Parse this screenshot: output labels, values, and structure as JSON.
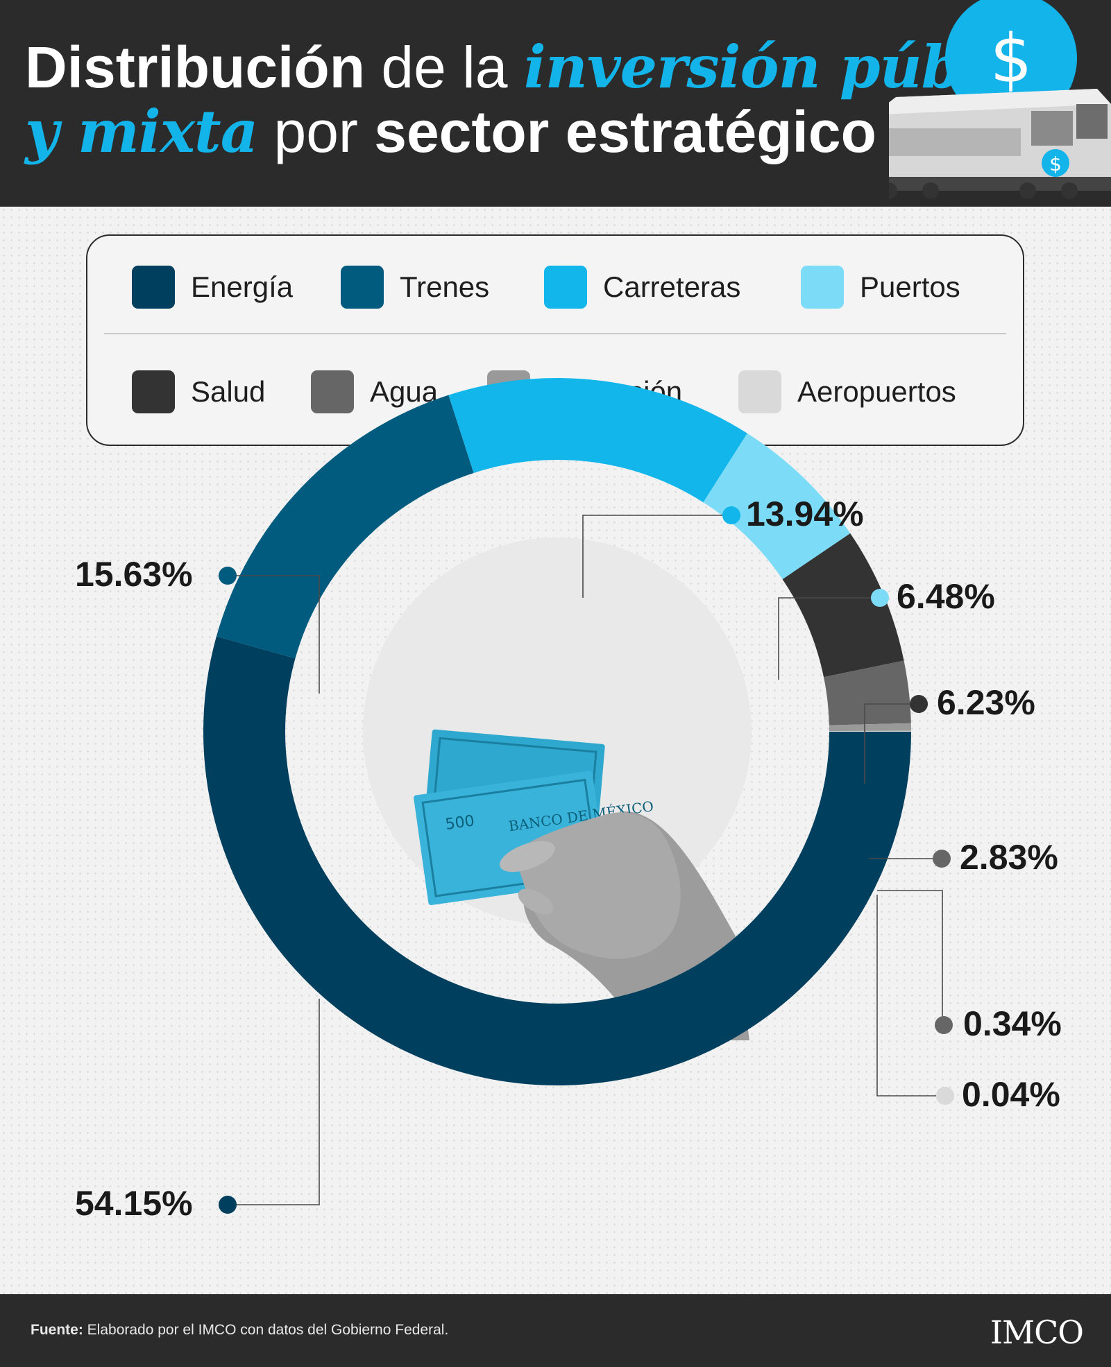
{
  "header": {
    "title_parts": [
      {
        "text": "Distribución",
        "style": "bold"
      },
      {
        "text": " de la ",
        "style": "light"
      },
      {
        "text": "inversión pública",
        "style": "accent"
      },
      {
        "text": "y mixta",
        "style": "accent"
      },
      {
        "text": " por ",
        "style": "light"
      },
      {
        "text": "sector estratégico",
        "style": "bold"
      }
    ],
    "accent_color": "#13b4ea",
    "illustration_icons": [
      "dollar-coin-icon",
      "train-icon"
    ]
  },
  "legend": {
    "items": [
      {
        "label": "Energía",
        "color": "#003f5e"
      },
      {
        "label": "Trenes",
        "color": "#005b7f"
      },
      {
        "label": "Carreteras",
        "color": "#12b6ea"
      },
      {
        "label": "Puertos",
        "color": "#7cdcf7"
      },
      {
        "label": "Salud",
        "color": "#333333"
      },
      {
        "label": "Agua",
        "color": "#666666"
      },
      {
        "label": "Educación",
        "color": "#999999"
      },
      {
        "label": "Aeropuertos",
        "color": "#d9d9d9"
      }
    ]
  },
  "chart_data": {
    "type": "pie",
    "donut": true,
    "categories": [
      "Energía",
      "Trenes",
      "Carreteras",
      "Puertos",
      "Salud",
      "Agua",
      "Educación",
      "Aeropuertos"
    ],
    "values": [
      54.15,
      15.63,
      13.94,
      6.48,
      6.23,
      2.83,
      0.34,
      0.04
    ],
    "value_labels": [
      "54.15%",
      "15.63%",
      "13.94%",
      "6.48%",
      "6.23%",
      "2.83%",
      "0.34%",
      "0.04%"
    ],
    "colors": [
      "#003f5e",
      "#005b7f",
      "#12b6ea",
      "#7cdcf7",
      "#333333",
      "#666666",
      "#999999",
      "#d9d9d9"
    ],
    "legend_position": "top",
    "center_image": "hand-holding-500-peso-banknotes"
  },
  "footer": {
    "source_prefix": "Fuente:",
    "source_text": " Elaborado por el IMCO con datos del Gobierno Federal.",
    "logo_text": "IMCO"
  }
}
